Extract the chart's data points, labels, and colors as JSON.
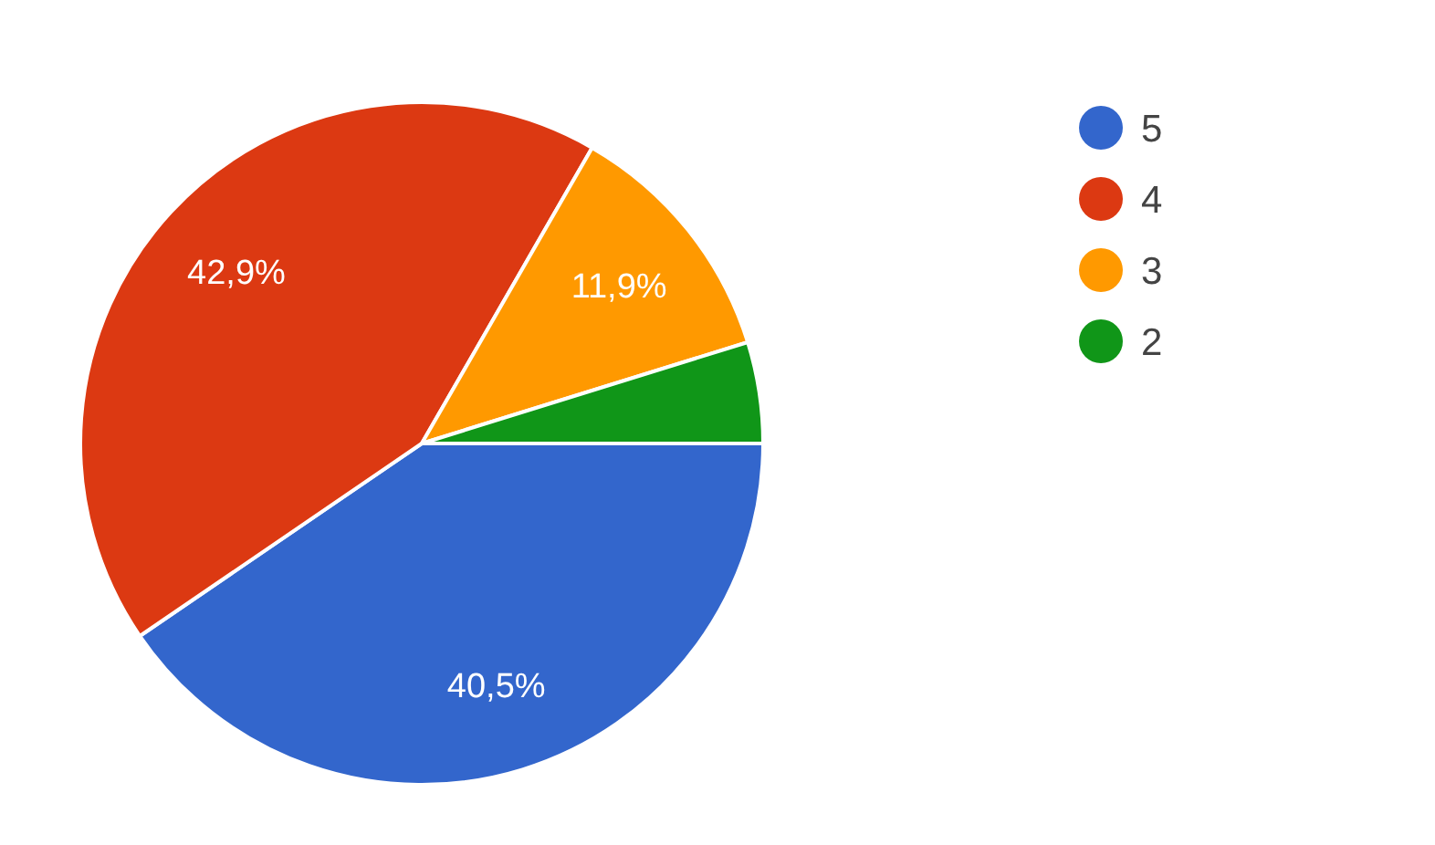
{
  "chart_data": {
    "type": "pie",
    "categories": [
      "5",
      "4",
      "3",
      "2"
    ],
    "values": [
      40.5,
      42.9,
      11.9,
      4.8
    ],
    "colors": [
      "#3366cc",
      "#dc3912",
      "#ff9900",
      "#109618"
    ],
    "value_labels": [
      "40,5%",
      "42,9%",
      "11,9%",
      null
    ],
    "legend": "right"
  }
}
